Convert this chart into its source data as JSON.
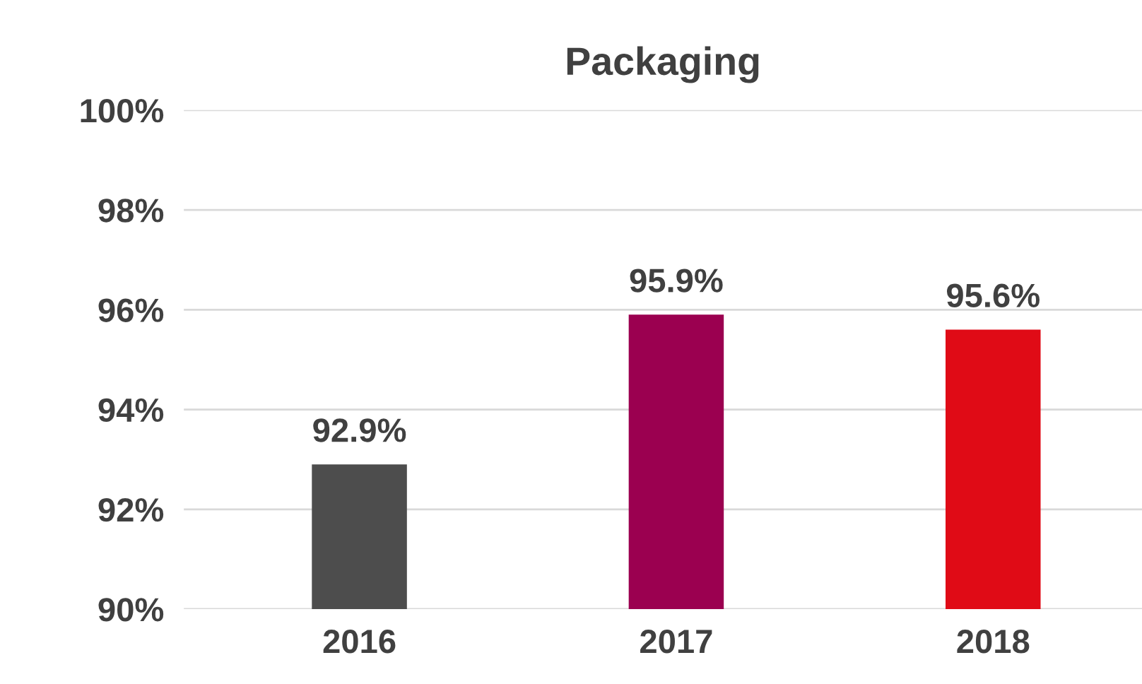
{
  "chart_data": {
    "type": "bar",
    "title": "Packaging",
    "categories": [
      "2016",
      "2017",
      "2018"
    ],
    "values": [
      92.9,
      95.9,
      95.6
    ],
    "colors": [
      "#4d4d4d",
      "#9b0050",
      "#e00b16"
    ],
    "value_labels": [
      "92.9%",
      "95.9%",
      "95.6%"
    ],
    "ylim": [
      90,
      100
    ],
    "yticks": [
      {
        "value": 90,
        "label": "90%"
      },
      {
        "value": 92,
        "label": "92%"
      },
      {
        "value": 94,
        "label": "94%"
      },
      {
        "value": 96,
        "label": "96%"
      },
      {
        "value": 98,
        "label": "98%"
      },
      {
        "value": 100,
        "label": "100%"
      }
    ],
    "grid": "y",
    "legend": false
  }
}
